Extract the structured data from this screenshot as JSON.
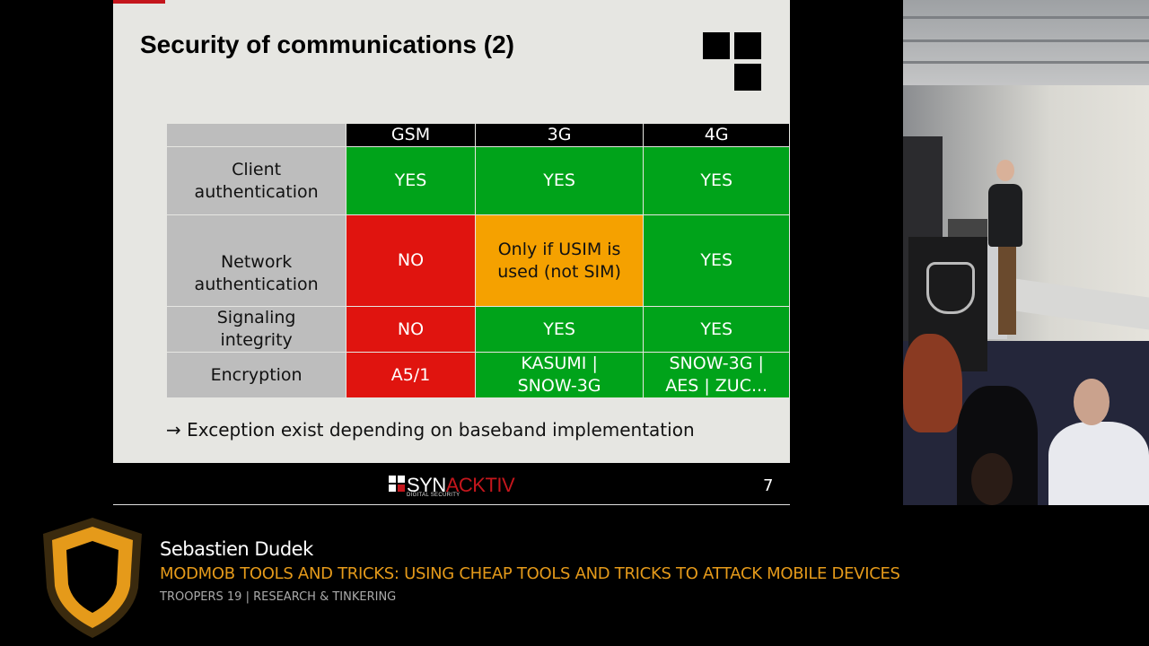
{
  "slide": {
    "title": "Security of communications (2)",
    "page_number": "7",
    "table": {
      "columns": [
        "GSM",
        "3G",
        "4G"
      ],
      "rows": [
        {
          "label": "Client authentication",
          "cells": [
            "YES",
            "YES",
            "YES"
          ],
          "colors": [
            "green",
            "green",
            "green"
          ]
        },
        {
          "label": "Network authentication",
          "cells": [
            "NO",
            "Only if USIM is used (not SIM)",
            "YES"
          ],
          "colors": [
            "red",
            "orange",
            "green"
          ]
        },
        {
          "label": "Signaling integrity",
          "cells": [
            "NO",
            "YES",
            "YES"
          ],
          "colors": [
            "red",
            "green",
            "green"
          ]
        },
        {
          "label": "Encryption",
          "cells": [
            "A5/1",
            "KASUMI | SNOW-3G",
            "SNOW-3G | AES | ZUC..."
          ],
          "colors": [
            "red",
            "green",
            "green"
          ]
        }
      ]
    },
    "note": "→ Exception exist depending on baseband implementation",
    "footer_logo": {
      "part1": "SYN",
      "part2": "ACKTIV",
      "tagline": "DIGITAL SECURITY"
    }
  },
  "lower_third": {
    "speaker": "Sebastien Dudek",
    "talk_title": "MODMOB TOOLS AND TRICKS: USING CHEAP TOOLS AND TRICKS TO ATTACK MOBILE DEVICES",
    "event": "TROOPERS 19 | RESEARCH & TINKERING"
  },
  "colors": {
    "green": "#00a31a",
    "red": "#e0140f",
    "orange": "#f5a100",
    "accent": "#e59a1a",
    "syn_red": "#c4161c"
  },
  "icons": [
    "synacktiv-logo-icon",
    "troopers-shield-icon",
    "slide-blocks-logo-icon"
  ]
}
